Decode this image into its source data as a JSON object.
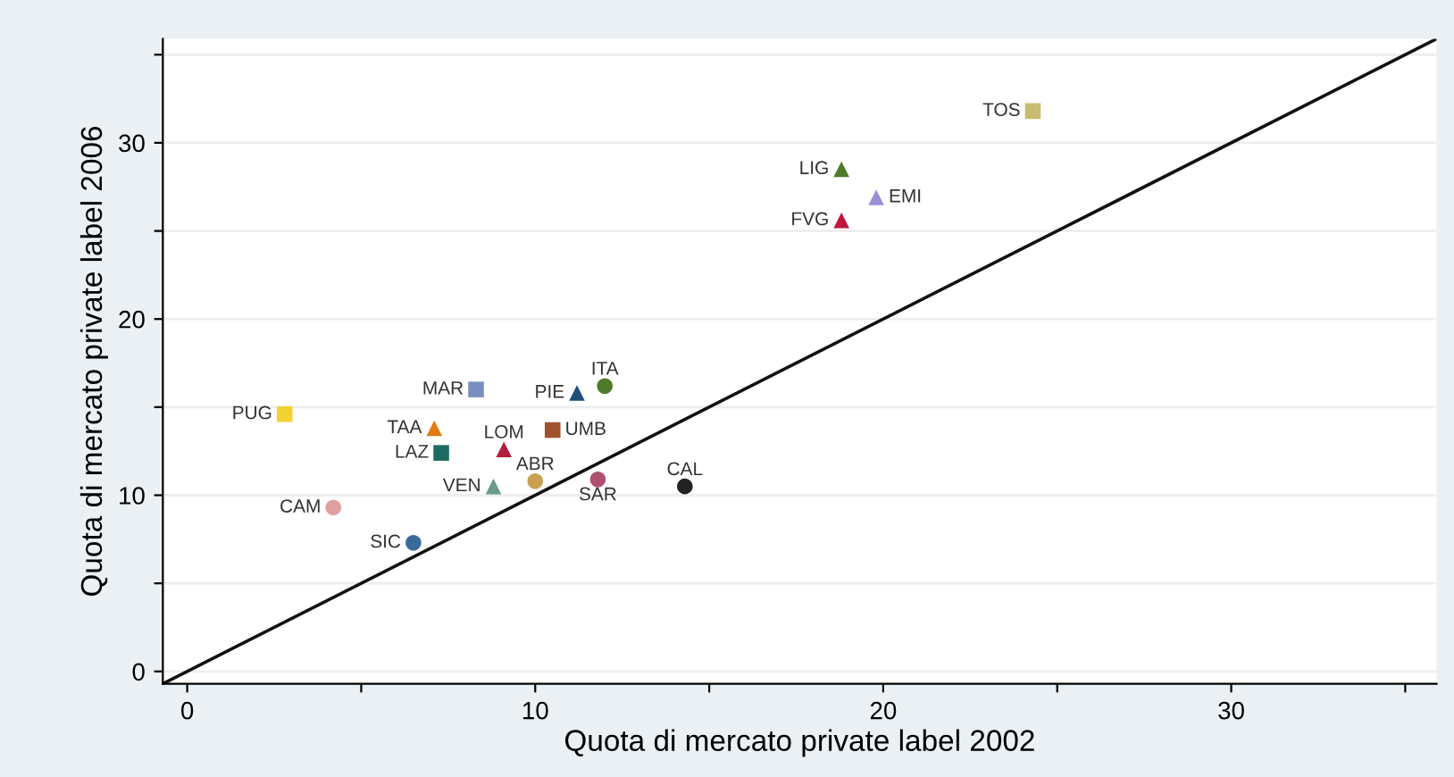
{
  "chart_data": {
    "type": "scatter",
    "xlabel": "Quota di mercato private label 2002",
    "ylabel": "Quota di mercato private label 2006",
    "xlim": [
      -0.7,
      35.9
    ],
    "ylim": [
      -0.7,
      35.9
    ],
    "xticks": [
      0,
      {
        "value": 5,
        "label": null
      },
      10,
      {
        "value": 15,
        "label": null
      },
      20,
      {
        "value": 25,
        "label": null
      },
      30,
      {
        "value": 35,
        "label": null
      }
    ],
    "yticks": [
      0,
      {
        "value": 5,
        "label": null
      },
      10,
      {
        "value": 15,
        "label": null
      },
      20,
      {
        "value": 25,
        "label": null
      },
      30,
      {
        "value": 35,
        "label": null
      }
    ],
    "grid": "y",
    "legend": false,
    "series": [
      {
        "name": "TOS",
        "color": "#c8bc6e",
        "marker": "square",
        "x": [
          24.3
        ],
        "values": [
          31.8
        ]
      },
      {
        "name": "LIG",
        "color": "#4e7a2a",
        "marker": "triangle",
        "x": [
          18.8
        ],
        "values": [
          28.5
        ]
      },
      {
        "name": "EMI",
        "color": "#9a8fd6",
        "marker": "triangle",
        "x": [
          19.8
        ],
        "values": [
          26.9
        ]
      },
      {
        "name": "FVG",
        "color": "#c0143c",
        "marker": "triangle",
        "x": [
          18.8
        ],
        "values": [
          25.6
        ]
      },
      {
        "name": "ITA",
        "color": "#4e7a2a",
        "marker": "circle",
        "x": [
          12.0
        ],
        "values": [
          16.2
        ]
      },
      {
        "name": "PIE",
        "color": "#1f4e79",
        "marker": "triangle",
        "x": [
          11.2
        ],
        "values": [
          15.8
        ]
      },
      {
        "name": "MAR",
        "color": "#7a8fbf",
        "marker": "square",
        "x": [
          8.3
        ],
        "values": [
          16.0
        ]
      },
      {
        "name": "PUG",
        "color": "#f2d230",
        "marker": "square",
        "x": [
          2.8
        ],
        "values": [
          14.6
        ]
      },
      {
        "name": "TAA",
        "color": "#e07b10",
        "marker": "triangle",
        "x": [
          7.1
        ],
        "values": [
          13.8
        ]
      },
      {
        "name": "UMB",
        "color": "#a0522d",
        "marker": "square",
        "x": [
          10.5
        ],
        "values": [
          13.7
        ]
      },
      {
        "name": "LAZ",
        "color": "#1e6b64",
        "marker": "square",
        "x": [
          7.3
        ],
        "values": [
          12.4
        ]
      },
      {
        "name": "LOM",
        "color": "#b0203c",
        "marker": "triangle",
        "x": [
          9.1
        ],
        "values": [
          12.6
        ]
      },
      {
        "name": "ABR",
        "color": "#c8a050",
        "marker": "circle",
        "x": [
          10.0
        ],
        "values": [
          10.8
        ]
      },
      {
        "name": "SAR",
        "color": "#b05070",
        "marker": "circle",
        "x": [
          11.8
        ],
        "values": [
          10.9
        ]
      },
      {
        "name": "CAL",
        "color": "#222222",
        "marker": "circle",
        "x": [
          14.3
        ],
        "values": [
          10.5
        ]
      },
      {
        "name": "VEN",
        "color": "#6a9a8a",
        "marker": "triangle",
        "x": [
          8.8
        ],
        "values": [
          10.5
        ]
      },
      {
        "name": "CAM",
        "color": "#e0a0a0",
        "marker": "circle",
        "x": [
          4.2
        ],
        "values": [
          9.3
        ]
      },
      {
        "name": "SIC",
        "color": "#3a6a9a",
        "marker": "circle",
        "x": [
          6.5
        ],
        "values": [
          7.3
        ]
      },
      {
        "type": "line",
        "color": "#111111",
        "marker": "none",
        "x": [
          -0.7,
          35.9
        ],
        "values": [
          -0.7,
          35.9
        ]
      }
    ]
  }
}
